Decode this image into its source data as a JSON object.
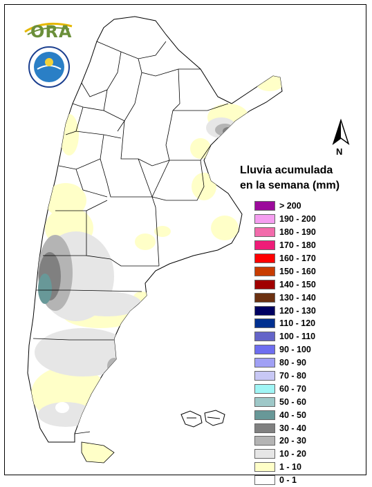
{
  "logos": {
    "ora_text": "ORA",
    "smn_ring_text": "SERVICIO METEOROLOGICO NACIONAL",
    "smn_bottom_text": "ARGENTINA",
    "smn_center_text": "SMN"
  },
  "north_arrow": {
    "label": "N"
  },
  "legend": {
    "title_line1": "Lluvia acumulada",
    "title_line2": "en la semana (mm)",
    "items": [
      {
        "label": "> 200",
        "color": "#9b0a9b"
      },
      {
        "label": "190 - 200",
        "color": "#f59ef0"
      },
      {
        "label": "180 - 190",
        "color": "#f26bab"
      },
      {
        "label": "170 - 180",
        "color": "#ee1c78"
      },
      {
        "label": "160 - 170",
        "color": "#ff0000"
      },
      {
        "label": "150 - 160",
        "color": "#c83c00"
      },
      {
        "label": "140 - 150",
        "color": "#a00000"
      },
      {
        "label": "130 - 140",
        "color": "#6b3010"
      },
      {
        "label": "120 - 130",
        "color": "#000060"
      },
      {
        "label": "110 - 120",
        "color": "#003090"
      },
      {
        "label": "100 - 110",
        "color": "#6464c8"
      },
      {
        "label": "90 - 100",
        "color": "#6e6ef0"
      },
      {
        "label": "80 - 90",
        "color": "#a0a0f5"
      },
      {
        "label": "70 - 80",
        "color": "#c8c8f5"
      },
      {
        "label": "60 - 70",
        "color": "#a0f5f5"
      },
      {
        "label": "50 - 60",
        "color": "#9ec8c8"
      },
      {
        "label": "40 - 50",
        "color": "#689898"
      },
      {
        "label": "30 - 40",
        "color": "#808080"
      },
      {
        "label": "20 - 30",
        "color": "#b4b4b4"
      },
      {
        "label": "10 - 20",
        "color": "#e6e6e6"
      },
      {
        "label": "1 - 10",
        "color": "#ffffc8"
      },
      {
        "label": "0 - 1",
        "color": "#ffffff"
      }
    ]
  }
}
